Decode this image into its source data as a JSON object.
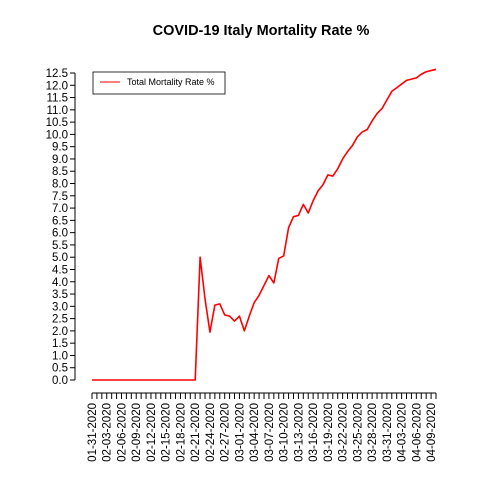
{
  "chart_data": {
    "type": "line",
    "title": "COVID-19 Italy Mortality Rate %",
    "xlabel": "",
    "ylabel": "",
    "ylim": [
      0,
      12.5
    ],
    "y_ticks": [
      0.0,
      0.5,
      1.0,
      1.5,
      2.0,
      2.5,
      3.0,
      3.5,
      4.0,
      4.5,
      5.0,
      5.5,
      6.0,
      6.5,
      7.0,
      7.5,
      8.0,
      8.5,
      9.0,
      9.5,
      10.0,
      10.5,
      11.0,
      11.5,
      12.0,
      12.5
    ],
    "x_tick_labels": [
      "01-31-2020",
      "02-03-2020",
      "02-06-2020",
      "02-09-2020",
      "02-12-2020",
      "02-15-2020",
      "02-18-2020",
      "02-21-2020",
      "02-24-2020",
      "02-27-2020",
      "03-01-2020",
      "03-04-2020",
      "03-07-2020",
      "03-10-2020",
      "03-13-2020",
      "03-16-2020",
      "03-19-2020",
      "03-22-2020",
      "03-25-2020",
      "03-28-2020",
      "03-31-2020",
      "04-03-2020",
      "04-06-2020",
      "04-09-2020"
    ],
    "x": [
      "01-31-2020",
      "02-01-2020",
      "02-02-2020",
      "02-03-2020",
      "02-04-2020",
      "02-05-2020",
      "02-06-2020",
      "02-07-2020",
      "02-08-2020",
      "02-09-2020",
      "02-10-2020",
      "02-11-2020",
      "02-12-2020",
      "02-13-2020",
      "02-14-2020",
      "02-15-2020",
      "02-16-2020",
      "02-17-2020",
      "02-18-2020",
      "02-19-2020",
      "02-20-2020",
      "02-21-2020",
      "02-22-2020",
      "02-23-2020",
      "02-24-2020",
      "02-25-2020",
      "02-26-2020",
      "02-27-2020",
      "02-28-2020",
      "02-29-2020",
      "03-01-2020",
      "03-02-2020",
      "03-03-2020",
      "03-04-2020",
      "03-05-2020",
      "03-06-2020",
      "03-07-2020",
      "03-08-2020",
      "03-09-2020",
      "03-10-2020",
      "03-11-2020",
      "03-12-2020",
      "03-13-2020",
      "03-14-2020",
      "03-15-2020",
      "03-16-2020",
      "03-17-2020",
      "03-18-2020",
      "03-19-2020",
      "03-20-2020",
      "03-21-2020",
      "03-22-2020",
      "03-23-2020",
      "03-24-2020",
      "03-25-2020",
      "03-26-2020",
      "03-27-2020",
      "03-28-2020",
      "03-29-2020",
      "03-30-2020",
      "03-31-2020",
      "04-01-2020",
      "04-02-2020",
      "04-03-2020",
      "04-04-2020",
      "04-05-2020",
      "04-06-2020",
      "04-07-2020",
      "04-08-2020",
      "04-09-2020",
      "04-10-2020"
    ],
    "series": [
      {
        "name": "Total Mortality Rate %",
        "color": "#ff0000",
        "values": [
          0,
          0,
          0,
          0,
          0,
          0,
          0,
          0,
          0,
          0,
          0,
          0,
          0,
          0,
          0,
          0,
          0,
          0,
          0,
          0,
          0,
          0,
          5.0,
          3.3,
          1.95,
          3.05,
          3.1,
          2.65,
          2.6,
          2.4,
          2.6,
          2.0,
          2.6,
          3.15,
          3.45,
          3.85,
          4.25,
          3.95,
          4.95,
          5.05,
          6.2,
          6.65,
          6.7,
          7.15,
          6.8,
          7.3,
          7.7,
          7.95,
          8.35,
          8.3,
          8.6,
          9.0,
          9.3,
          9.55,
          9.9,
          10.1,
          10.2,
          10.55,
          10.85,
          11.05,
          11.4,
          11.75,
          11.9,
          12.05,
          12.2,
          12.25,
          12.3,
          12.45,
          12.55,
          12.6,
          12.65
        ]
      }
    ],
    "legend_position": "top-left",
    "grid": false
  }
}
